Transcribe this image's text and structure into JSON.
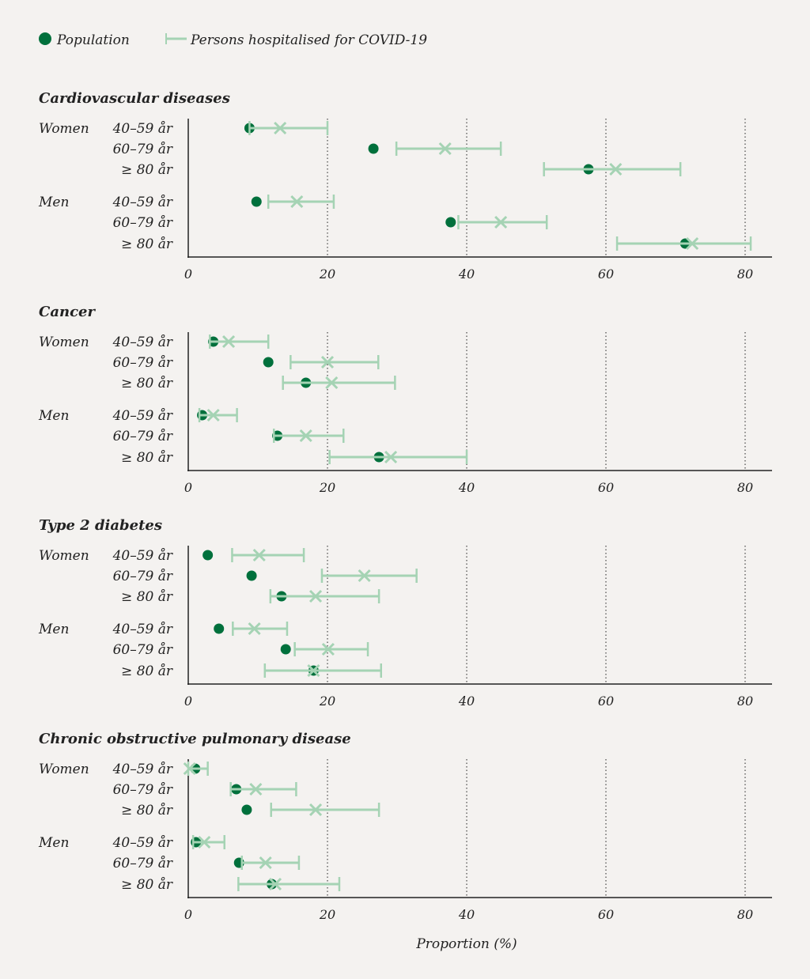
{
  "chart_data": {
    "type": "dot-and-interval",
    "legend": {
      "placement": "top-left",
      "entries": [
        {
          "name": "Population",
          "marker": "dot",
          "color": "#00703c"
        },
        {
          "name": "Persons hospitalised for COVID-19",
          "marker": "cross-with-interval",
          "color": "#a5d3b4"
        }
      ]
    },
    "xlabel": "Proportion (%)",
    "xlim": [
      0,
      84
    ],
    "xticks": [
      0,
      20,
      40,
      60,
      80
    ],
    "grid": "dotted vertical at 20, 40, 60, 80",
    "groups": [
      "Women",
      "Men"
    ],
    "age_groups": [
      "40–59 år",
      "60–79 år",
      "≥ 80 år"
    ],
    "panels": [
      {
        "title": "Cardiovascular diseases",
        "rows": [
          {
            "group": "Women",
            "age": "40–59 år",
            "population": 8.8,
            "hospitalised": 13.2,
            "ci": [
              8.8,
              20.0
            ]
          },
          {
            "group": "Women",
            "age": "60–79 år",
            "population": 26.6,
            "hospitalised": 36.9,
            "ci": [
              29.9,
              44.9
            ]
          },
          {
            "group": "Women",
            "age": "≥ 80 år",
            "population": 57.5,
            "hospitalised": 61.4,
            "ci": [
              51.1,
              70.7
            ]
          },
          {
            "group": "Men",
            "age": "40–59 år",
            "population": 9.8,
            "hospitalised": 15.6,
            "ci": [
              11.5,
              20.9
            ]
          },
          {
            "group": "Men",
            "age": "60–79 år",
            "population": 37.7,
            "hospitalised": 44.9,
            "ci": [
              38.8,
              51.5
            ]
          },
          {
            "group": "Men",
            "age": "≥ 80 år",
            "population": 71.4,
            "hospitalised": 72.4,
            "ci": [
              61.6,
              80.8
            ]
          }
        ]
      },
      {
        "title": "Cancer",
        "rows": [
          {
            "group": "Women",
            "age": "40–59 år",
            "population": 3.6,
            "hospitalised": 5.8,
            "ci": [
              3.1,
              11.5
            ]
          },
          {
            "group": "Women",
            "age": "60–79 år",
            "population": 11.5,
            "hospitalised": 20.0,
            "ci": [
              14.7,
              27.3
            ]
          },
          {
            "group": "Women",
            "age": "≥ 80 år",
            "population": 16.9,
            "hospitalised": 20.6,
            "ci": [
              13.6,
              29.7
            ]
          },
          {
            "group": "Men",
            "age": "40–59 år",
            "population": 2.0,
            "hospitalised": 3.6,
            "ci": [
              1.6,
              7.0
            ]
          },
          {
            "group": "Men",
            "age": "60–79 år",
            "population": 12.8,
            "hospitalised": 16.9,
            "ci": [
              12.3,
              22.3
            ]
          },
          {
            "group": "Men",
            "age": "≥ 80 år",
            "population": 27.4,
            "hospitalised": 29.1,
            "ci": [
              20.3,
              40.0
            ]
          }
        ]
      },
      {
        "title": "Type 2 diabetes",
        "rows": [
          {
            "group": "Women",
            "age": "40–59 år",
            "population": 2.8,
            "hospitalised": 10.2,
            "ci": [
              6.3,
              16.6
            ]
          },
          {
            "group": "Women",
            "age": "60–79 år",
            "population": 9.1,
            "hospitalised": 25.3,
            "ci": [
              19.2,
              32.8
            ]
          },
          {
            "group": "Women",
            "age": "≥ 80 år",
            "population": 13.4,
            "hospitalised": 18.3,
            "ci": [
              11.8,
              27.4
            ]
          },
          {
            "group": "Men",
            "age": "40–59 år",
            "population": 4.4,
            "hospitalised": 9.5,
            "ci": [
              6.4,
              14.2
            ]
          },
          {
            "group": "Men",
            "age": "60–79 år",
            "population": 14.0,
            "hospitalised": 20.1,
            "ci": [
              15.3,
              25.8
            ]
          },
          {
            "group": "Men",
            "age": "≥ 80 år",
            "population": 18.0,
            "hospitalised": 18.0,
            "ci": [
              11.0,
              27.7
            ]
          }
        ]
      },
      {
        "title": "Chronic obstructive pulmonary disease",
        "rows": [
          {
            "group": "Women",
            "age": "40–59 år",
            "population": 1.0,
            "hospitalised": 0.2,
            "ci": [
              0.0,
              2.8
            ]
          },
          {
            "group": "Women",
            "age": "60–79 år",
            "population": 6.9,
            "hospitalised": 9.7,
            "ci": [
              6.1,
              15.5
            ]
          },
          {
            "group": "Women",
            "age": "≥ 80 år",
            "population": 8.4,
            "hospitalised": 18.3,
            "ci": [
              11.9,
              27.4
            ]
          },
          {
            "group": "Men",
            "age": "40–59 år",
            "population": 1.1,
            "hospitalised": 2.3,
            "ci": [
              0.7,
              5.2
            ]
          },
          {
            "group": "Men",
            "age": "60–79 år",
            "population": 7.3,
            "hospitalised": 11.1,
            "ci": [
              7.7,
              15.9
            ]
          },
          {
            "group": "Men",
            "age": "≥ 80 år",
            "population": 12.0,
            "hospitalised": 12.5,
            "ci": [
              7.2,
              21.7
            ]
          }
        ]
      }
    ]
  }
}
